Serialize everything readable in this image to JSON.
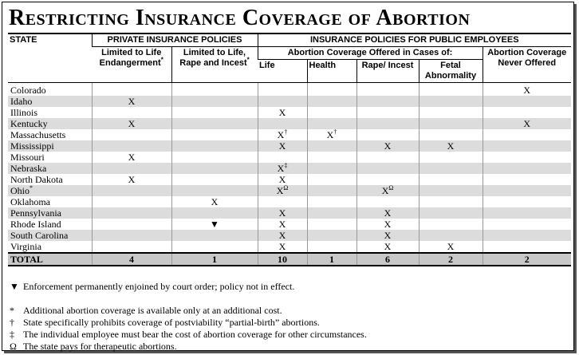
{
  "title": "Restricting Insurance Coverage of Abortion",
  "header": {
    "state": "STATE",
    "private": "PRIVATE INSURANCE POLICIES",
    "public": "INSURANCE POLICIES FOR PUBLIC EMPLOYEES",
    "columns": [
      {
        "text": "Limited to Life Endangerment",
        "sup": "*"
      },
      {
        "text": "Limited to Life, Rape and Incest",
        "sup": "*"
      }
    ],
    "offered": "Abortion Coverage Offered in Cases of:",
    "never": "Abortion Coverage Never Offered",
    "cases": [
      "Life",
      "Health",
      "Rape/ Incest",
      "Fetal Abnormality"
    ]
  },
  "table": {
    "rows": [
      [
        "Colorado",
        null,
        null,
        null,
        null,
        null,
        null,
        "X"
      ],
      [
        "Idaho",
        "X",
        null,
        null,
        null,
        null,
        null,
        null
      ],
      [
        "Illinois",
        null,
        null,
        "X",
        null,
        null,
        null,
        null
      ],
      [
        "Kentucky",
        "X",
        null,
        null,
        null,
        null,
        null,
        "X"
      ],
      [
        "Massachusetts",
        null,
        null,
        {
          "text": "X",
          "sup": "†"
        },
        {
          "text": "X",
          "sup": "†"
        },
        null,
        null,
        null
      ],
      [
        "Mississippi",
        null,
        null,
        "X",
        null,
        "X",
        "X",
        null
      ],
      [
        "Missouri",
        "X",
        null,
        null,
        null,
        null,
        null,
        null
      ],
      [
        "Nebraska",
        null,
        null,
        {
          "text": "X",
          "sup": "‡"
        },
        null,
        null,
        null,
        null
      ],
      [
        "North Dakota",
        "X",
        null,
        "X",
        null,
        null,
        null,
        null
      ],
      [
        {
          "text": "Ohio",
          "sup": "*"
        },
        null,
        null,
        {
          "text": "X",
          "sup": "Ω"
        },
        null,
        {
          "text": "X",
          "sup": "Ω"
        },
        null,
        null
      ],
      [
        "Oklahoma",
        null,
        "X",
        null,
        null,
        null,
        null,
        null
      ],
      [
        "Pennsylvania",
        null,
        null,
        "X",
        null,
        "X",
        null,
        null
      ],
      [
        "Rhode Island",
        null,
        "▼",
        "X",
        null,
        "X",
        null,
        null
      ],
      [
        "South Carolina",
        null,
        null,
        "X",
        null,
        "X",
        null,
        null
      ],
      [
        "Virginia",
        null,
        null,
        "X",
        null,
        "X",
        "X",
        null
      ]
    ],
    "total": [
      "TOTAL",
      4,
      1,
      10,
      1,
      6,
      2,
      2
    ]
  },
  "notes": [
    {
      "symbol": "▼",
      "text": "Enforcement permanently enjoined by court order; policy not in effect."
    },
    {
      "symbol": "*",
      "text": "Additional abortion coverage is available only at an additional cost."
    },
    {
      "symbol": "†",
      "text": "State specifically prohibits coverage of postviability “partial-birth” abortions."
    },
    {
      "symbol": "‡",
      "text": "The individual employee must bear the cost of abortion coverage for other circumstances."
    },
    {
      "symbol": "Ω",
      "text": "The state pays for therapeutic abortions."
    }
  ]
}
